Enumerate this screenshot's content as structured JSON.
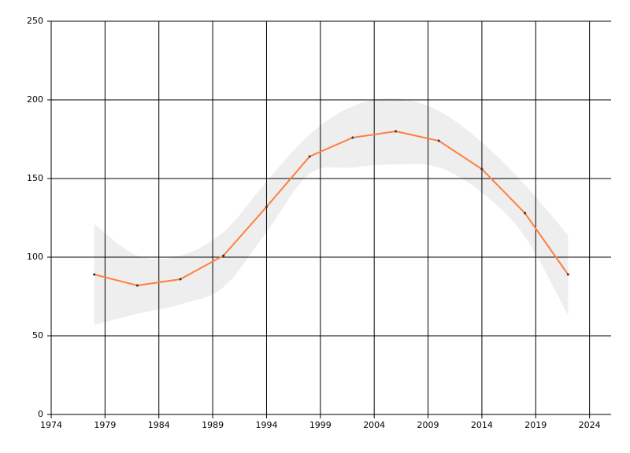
{
  "chart_data": {
    "type": "line",
    "x": [
      1978,
      1982,
      1986,
      1990,
      1994,
      1998,
      2002,
      2006,
      2010,
      2014,
      2018,
      2022
    ],
    "series": [
      {
        "color": "#ff7f3f",
        "values": [
          89,
          82,
          86,
          101,
          132,
          164,
          176,
          180,
          174,
          156,
          128,
          89
        ],
        "lower": [
          57,
          64,
          70,
          81,
          116,
          153,
          157,
          159,
          157,
          141,
          113,
          63
        ],
        "upper": [
          121,
          101,
          101,
          116,
          148,
          178,
          196,
          201,
          193,
          173,
          146,
          114
        ],
        "band_color": "#eeeeee"
      }
    ],
    "xlim": [
      1974,
      2026
    ],
    "xticks": [
      1974,
      1979,
      1984,
      1989,
      1994,
      1999,
      2004,
      2009,
      2014,
      2019,
      2024
    ],
    "ylim": [
      0,
      250
    ],
    "yticks": [
      0,
      50,
      100,
      150,
      200,
      250
    ],
    "grid": true
  }
}
